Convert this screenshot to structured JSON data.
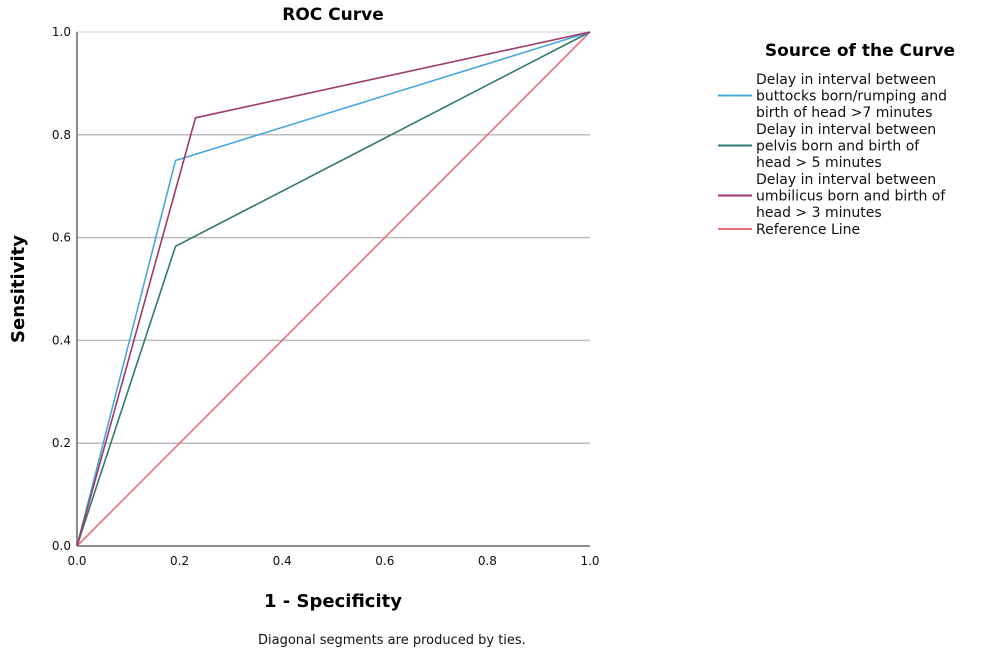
{
  "chart_data": {
    "type": "line",
    "title": "ROC Curve",
    "xlabel": "1 - Specificity",
    "ylabel": "Sensitivity",
    "xlim": [
      0,
      1
    ],
    "ylim": [
      0,
      1
    ],
    "xticks": [
      "0.0",
      "0.2",
      "0.4",
      "0.6",
      "0.8",
      "1.0"
    ],
    "yticks": [
      "0.0",
      "0.2",
      "0.4",
      "0.6",
      "0.8",
      "1.0"
    ],
    "grid": "horizontal",
    "legend": {
      "title": "Source of the Curve",
      "placement": "right"
    },
    "series": [
      {
        "name": "Delay in interval between buttocks born/rumping and birth of head >7 minutes",
        "legend_lines": [
          "Delay in interval between",
          "buttocks born/rumping and",
          "birth of head >7 minutes"
        ],
        "color": "#4aa8e0",
        "x": [
          0.0,
          0.192,
          1.0
        ],
        "y": [
          0.0,
          0.75,
          1.0
        ]
      },
      {
        "name": "Delay in interval between pelvis born and birth of head > 5 minutes",
        "legend_lines": [
          "Delay in interval between",
          "pelvis born and birth of",
          "head > 5 minutes"
        ],
        "color": "#2f7a6e",
        "x": [
          0.0,
          0.192,
          1.0
        ],
        "y": [
          0.0,
          0.583,
          1.0
        ]
      },
      {
        "name": "Delay in interval between umbilicus born and birth of head > 3 minutes",
        "legend_lines": [
          "Delay in interval between",
          "umbilicus born and birth of",
          "head > 3 minutes"
        ],
        "color": "#9e3a6a",
        "x": [
          0.0,
          0.231,
          1.0
        ],
        "y": [
          0.0,
          0.833,
          1.0
        ]
      },
      {
        "name": "Reference Line",
        "legend_lines": [
          "Reference Line"
        ],
        "color": "#e8707e",
        "x": [
          0.0,
          1.0
        ],
        "y": [
          0.0,
          1.0
        ]
      }
    ],
    "footnote": "Diagonal segments are produced by ties."
  }
}
